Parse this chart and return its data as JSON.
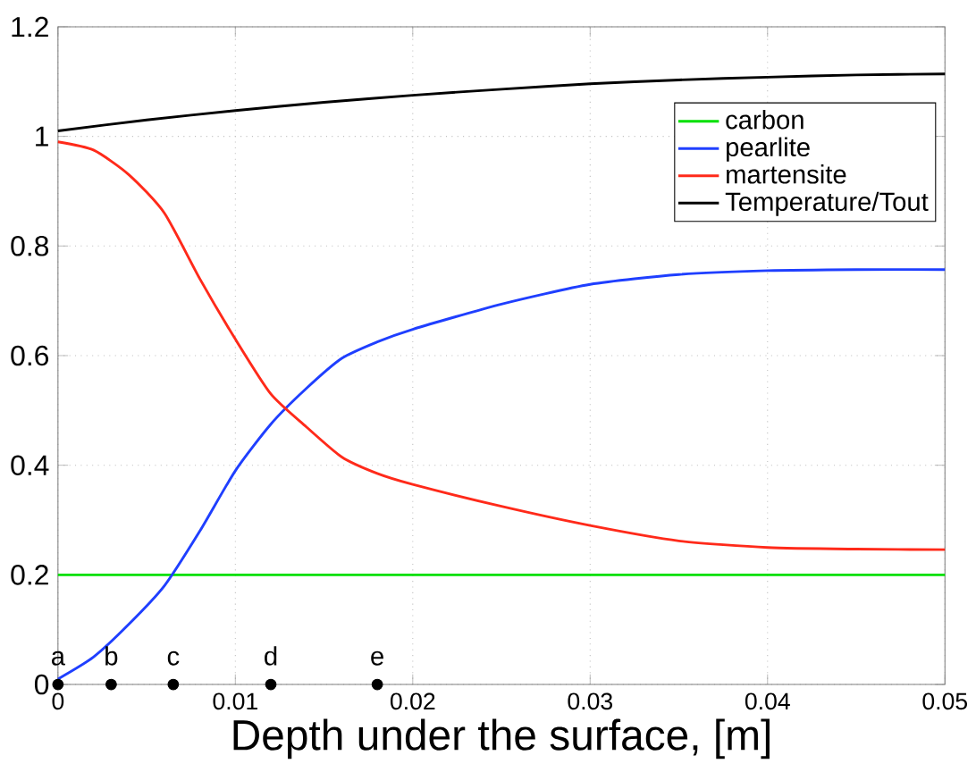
{
  "chart_data": {
    "type": "line",
    "xlabel": "Depth under the surface, [m]",
    "xlim": [
      0,
      0.05
    ],
    "ylim": [
      0,
      1.2
    ],
    "xticks": [
      0,
      0.01,
      0.02,
      0.03,
      0.04,
      0.05
    ],
    "yticks": [
      0,
      0.2,
      0.4,
      0.6,
      0.8,
      1,
      1.2
    ],
    "grid": true,
    "legend": "top right",
    "line_style": "solid",
    "series": [
      {
        "name": "carbon",
        "color": "#00e000",
        "x": [
          0,
          0.05
        ],
        "values": [
          0.2,
          0.2
        ]
      },
      {
        "name": "pearlite",
        "color": "#1f3fff",
        "x": [
          0,
          0.002,
          0.004,
          0.006,
          0.008,
          0.01,
          0.012,
          0.014,
          0.016,
          0.018,
          0.02,
          0.025,
          0.03,
          0.035,
          0.04,
          0.045,
          0.05
        ],
        "values": [
          0.01,
          0.05,
          0.11,
          0.18,
          0.28,
          0.39,
          0.475,
          0.54,
          0.595,
          0.625,
          0.648,
          0.694,
          0.73,
          0.748,
          0.755,
          0.757,
          0.757
        ]
      },
      {
        "name": "martensite",
        "color": "#ff2a1a",
        "x": [
          0,
          0.002,
          0.004,
          0.006,
          0.008,
          0.01,
          0.012,
          0.014,
          0.016,
          0.018,
          0.02,
          0.025,
          0.03,
          0.035,
          0.04,
          0.045,
          0.05
        ],
        "values": [
          0.99,
          0.975,
          0.93,
          0.86,
          0.74,
          0.63,
          0.53,
          0.47,
          0.415,
          0.385,
          0.365,
          0.325,
          0.29,
          0.262,
          0.25,
          0.247,
          0.246
        ]
      },
      {
        "name": "Temperature/Tout",
        "color": "#000000",
        "x": [
          0,
          0.005,
          0.01,
          0.015,
          0.02,
          0.025,
          0.03,
          0.035,
          0.04,
          0.045,
          0.05
        ],
        "values": [
          1.01,
          1.03,
          1.047,
          1.062,
          1.075,
          1.086,
          1.096,
          1.103,
          1.108,
          1.112,
          1.114
        ]
      },
      {
        "type": "scatter",
        "marker": "circle",
        "color": "#000000",
        "x": [
          0,
          0.003,
          0.0065,
          0.012,
          0.018
        ],
        "values": [
          0,
          0,
          0,
          0,
          0
        ]
      }
    ],
    "annotations": [
      {
        "text": "a",
        "x": 0,
        "y": 0
      },
      {
        "text": "b",
        "x": 0.003,
        "y": 0
      },
      {
        "text": "c",
        "x": 0.0065,
        "y": 0
      },
      {
        "text": "d",
        "x": 0.012,
        "y": 0
      },
      {
        "text": "e",
        "x": 0.018,
        "y": 0
      }
    ]
  }
}
